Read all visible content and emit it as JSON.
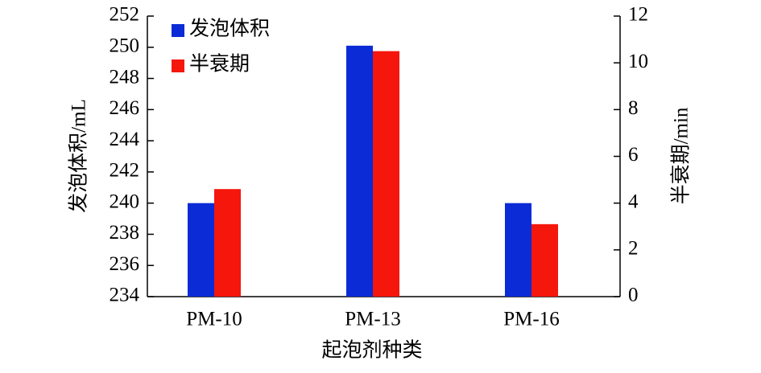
{
  "chart_data": {
    "type": "bar",
    "x_label": "起泡剂种类",
    "y_label": "发泡体积/mL",
    "y2_label": "半衰期/min",
    "categories": [
      "PM-10",
      "PM-13",
      "PM-16"
    ],
    "series": [
      {
        "name": "发泡体积",
        "color": "#0a2bd6",
        "values": [
          240,
          250.1,
          240
        ]
      },
      {
        "name": "半衰期",
        "color": "#f5160c",
        "axis": "y2",
        "values": [
          4.6,
          10.5,
          3.1
        ]
      }
    ],
    "ylim": [
      234,
      252
    ],
    "yticks": [
      234,
      236,
      238,
      240,
      242,
      244,
      246,
      248,
      250,
      252
    ],
    "y2lim": [
      0,
      12
    ],
    "y2ticks": [
      0,
      2,
      4,
      6,
      8,
      10,
      12
    ],
    "legend": "upper left"
  }
}
